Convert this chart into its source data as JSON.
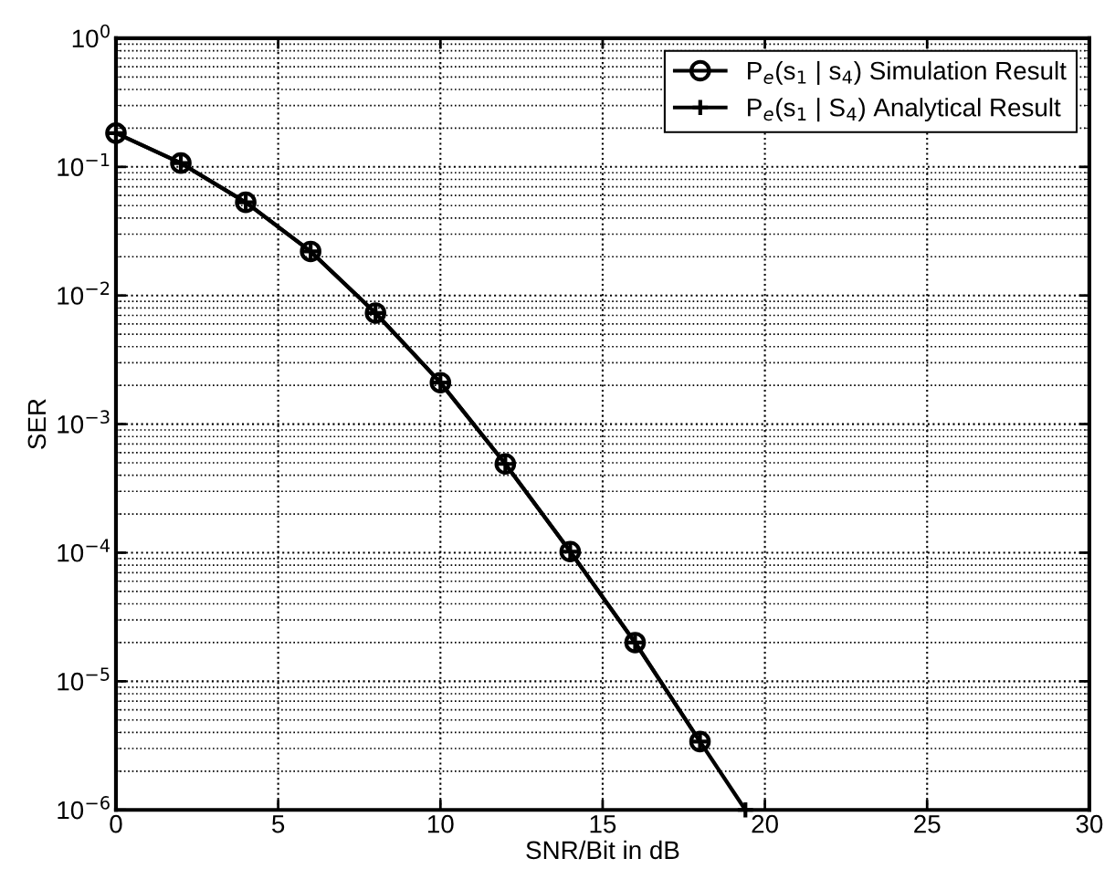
{
  "chart_data": {
    "type": "line",
    "xlabel": "SNR/Bit in dB",
    "ylabel": "SER",
    "log": "y",
    "grid": true,
    "legend": "top right",
    "xlim": [
      0,
      30
    ],
    "xticks": [
      0,
      5,
      10,
      15,
      20,
      25,
      30
    ],
    "ylim": [
      1e-06,
      1
    ],
    "yticks": [
      {
        "value": 1e-06,
        "label": "10$^{−6}$"
      },
      {
        "value": 1e-05,
        "label": "10$^{−5}$"
      },
      {
        "value": 0.0001,
        "label": "10$^{−4}$"
      },
      {
        "value": 0.001,
        "label": "10$^{−3}$"
      },
      {
        "value": 0.01,
        "label": "10$^{−2}$"
      },
      {
        "value": 0.1,
        "label": "10$^{−1}$"
      },
      {
        "value": 1,
        "label": "10$^{0}$"
      }
    ],
    "series": [
      {
        "name": "P$_{e}$(s$_{1}$ | s$_{4}$) Simulation Result",
        "color": "#000000",
        "marker": "circle",
        "x": [
          0,
          2,
          4,
          6,
          8,
          10,
          12,
          14,
          16,
          18
        ],
        "values": [
          0.183,
          0.107,
          0.053,
          0.022,
          0.0073,
          0.0021,
          0.00049,
          0.000102,
          2e-05,
          3.4e-06
        ]
      },
      {
        "name": "P$_{e}$(s$_{1}$ | S$_{4}$) Analytical Result",
        "color": "#000000",
        "marker": "cross",
        "x": [
          0,
          2,
          4,
          6,
          8,
          10,
          12,
          14,
          16,
          18,
          19.4
        ],
        "values": [
          0.183,
          0.107,
          0.053,
          0.022,
          0.0073,
          0.0021,
          0.00049,
          0.000102,
          2e-05,
          3.4e-06,
          1e-06
        ]
      }
    ]
  }
}
